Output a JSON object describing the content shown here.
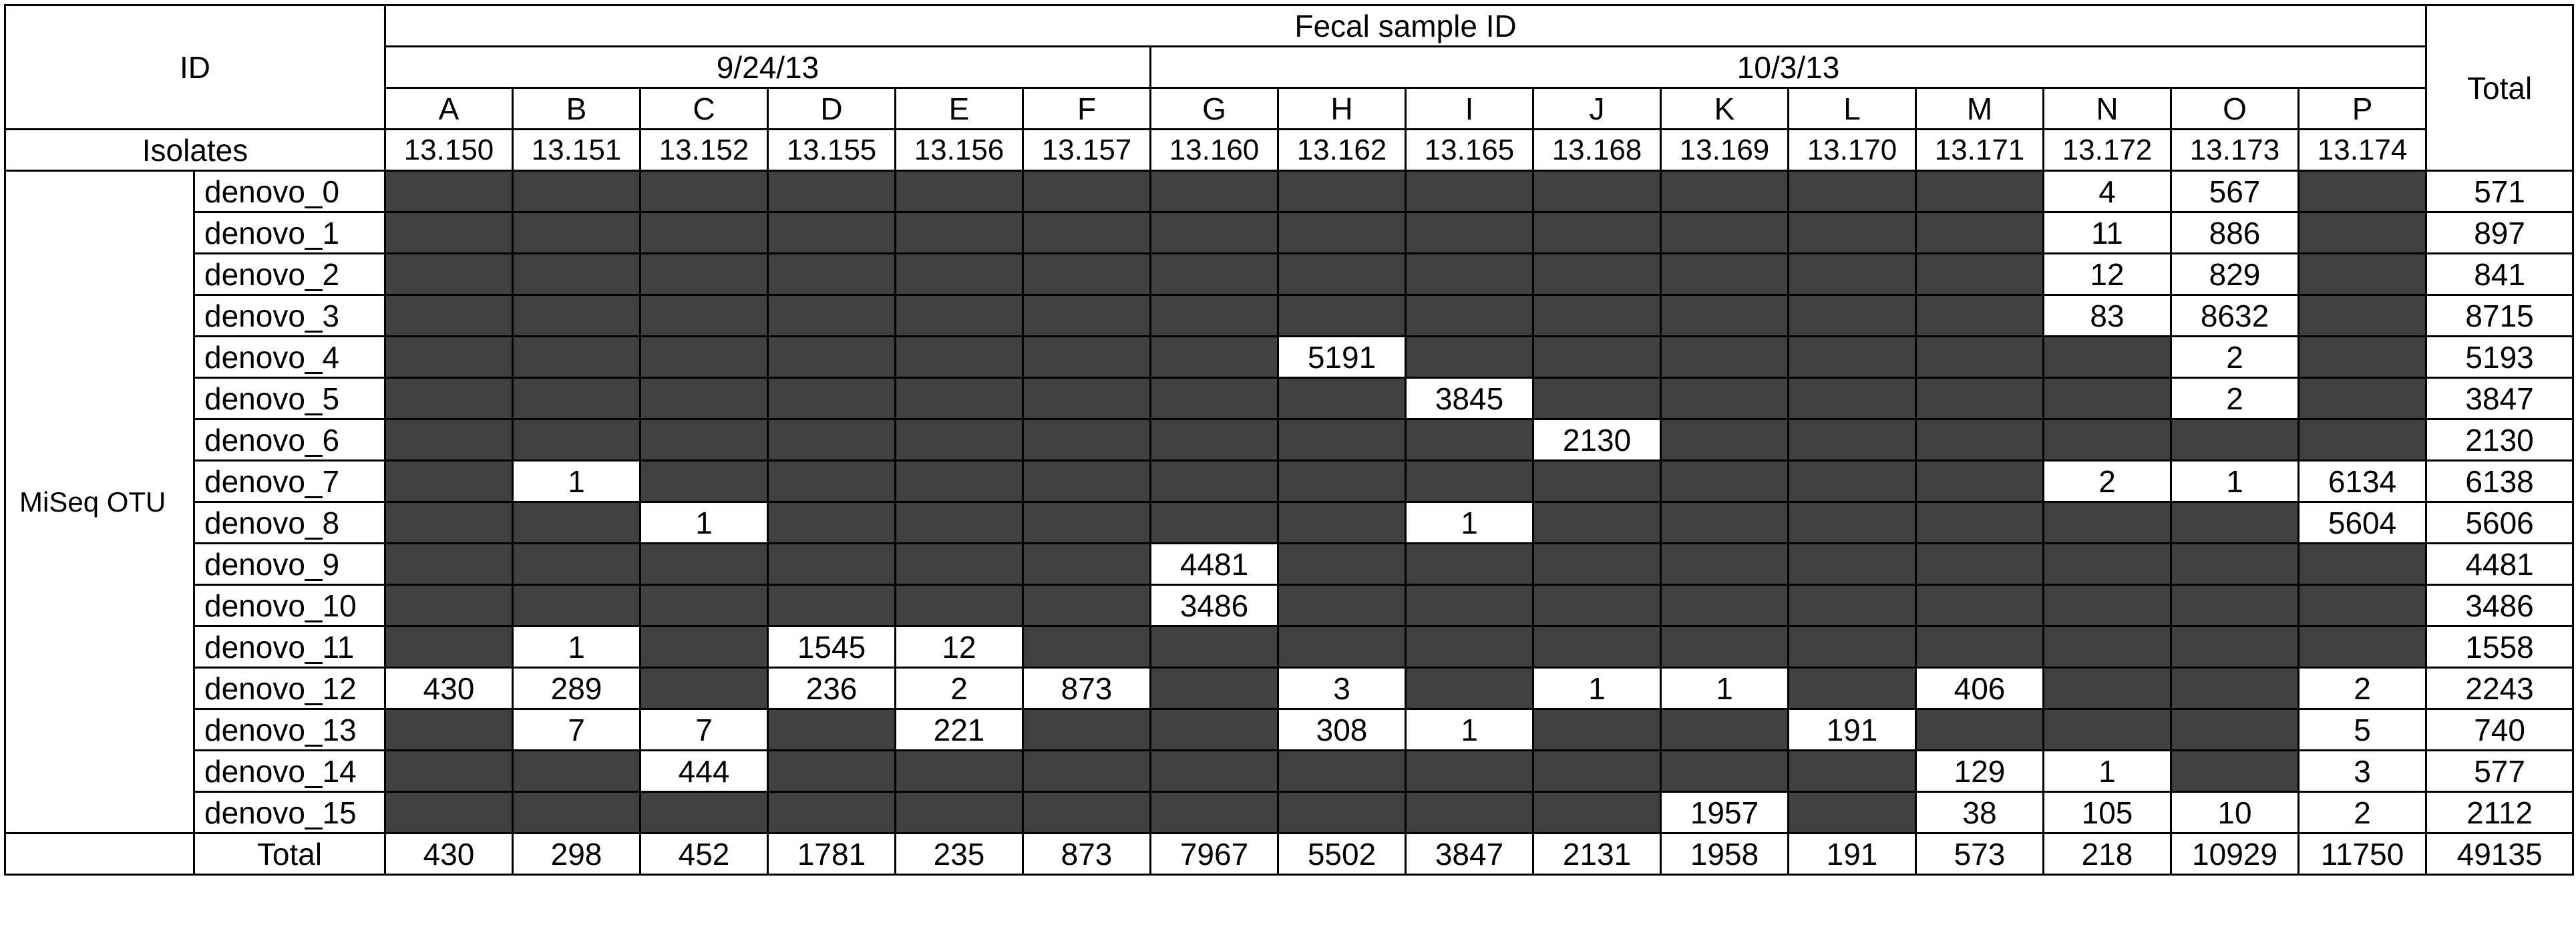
{
  "header": {
    "id_label": "ID",
    "fecal_label": "Fecal sample ID",
    "total_label": "Total",
    "dates": [
      "9/24/13",
      "10/3/13"
    ],
    "isolates_label": "Isolates",
    "miseq_label": "MiSeq OTU",
    "total_row_label": "Total"
  },
  "columns": [
    {
      "letter": "A",
      "isolate": "13.150"
    },
    {
      "letter": "B",
      "isolate": "13.151"
    },
    {
      "letter": "C",
      "isolate": "13.152"
    },
    {
      "letter": "D",
      "isolate": "13.155"
    },
    {
      "letter": "E",
      "isolate": "13.156"
    },
    {
      "letter": "F",
      "isolate": "13.157"
    },
    {
      "letter": "G",
      "isolate": "13.160"
    },
    {
      "letter": "H",
      "isolate": "13.162"
    },
    {
      "letter": "I",
      "isolate": "13.165"
    },
    {
      "letter": "J",
      "isolate": "13.168"
    },
    {
      "letter": "K",
      "isolate": "13.169"
    },
    {
      "letter": "L",
      "isolate": "13.170"
    },
    {
      "letter": "M",
      "isolate": "13.171"
    },
    {
      "letter": "N",
      "isolate": "13.172"
    },
    {
      "letter": "O",
      "isolate": "13.173"
    },
    {
      "letter": "P",
      "isolate": "13.174"
    }
  ],
  "rows": [
    {
      "label": "denovo_0",
      "cells": [
        null,
        null,
        null,
        null,
        null,
        null,
        null,
        null,
        null,
        null,
        null,
        null,
        null,
        "4",
        "567",
        null
      ],
      "total": "571"
    },
    {
      "label": "denovo_1",
      "cells": [
        null,
        null,
        null,
        null,
        null,
        null,
        null,
        null,
        null,
        null,
        null,
        null,
        null,
        "11",
        "886",
        null
      ],
      "total": "897"
    },
    {
      "label": "denovo_2",
      "cells": [
        null,
        null,
        null,
        null,
        null,
        null,
        null,
        null,
        null,
        null,
        null,
        null,
        null,
        "12",
        "829",
        null
      ],
      "total": "841"
    },
    {
      "label": "denovo_3",
      "cells": [
        null,
        null,
        null,
        null,
        null,
        null,
        null,
        null,
        null,
        null,
        null,
        null,
        null,
        "83",
        "8632",
        null
      ],
      "total": "8715"
    },
    {
      "label": "denovo_4",
      "cells": [
        null,
        null,
        null,
        null,
        null,
        null,
        null,
        "5191",
        null,
        null,
        null,
        null,
        null,
        null,
        "2",
        null
      ],
      "total": "5193"
    },
    {
      "label": "denovo_5",
      "cells": [
        null,
        null,
        null,
        null,
        null,
        null,
        null,
        null,
        "3845",
        null,
        null,
        null,
        null,
        null,
        "2",
        null
      ],
      "total": "3847"
    },
    {
      "label": "denovo_6",
      "cells": [
        null,
        null,
        null,
        null,
        null,
        null,
        null,
        null,
        null,
        "2130",
        null,
        null,
        null,
        null,
        null,
        null
      ],
      "total": "2130"
    },
    {
      "label": "denovo_7",
      "cells": [
        null,
        "1",
        null,
        null,
        null,
        null,
        null,
        null,
        null,
        null,
        null,
        null,
        null,
        "2",
        "1",
        "6134"
      ],
      "total": "6138"
    },
    {
      "label": "denovo_8",
      "cells": [
        null,
        null,
        "1",
        null,
        null,
        null,
        null,
        null,
        "1",
        null,
        null,
        null,
        null,
        null,
        null,
        "5604"
      ],
      "total": "5606"
    },
    {
      "label": "denovo_9",
      "cells": [
        null,
        null,
        null,
        null,
        null,
        null,
        "4481",
        null,
        null,
        null,
        null,
        null,
        null,
        null,
        null,
        null
      ],
      "total": "4481"
    },
    {
      "label": "denovo_10",
      "cells": [
        null,
        null,
        null,
        null,
        null,
        null,
        "3486",
        null,
        null,
        null,
        null,
        null,
        null,
        null,
        null,
        null
      ],
      "total": "3486"
    },
    {
      "label": "denovo_11",
      "cells": [
        null,
        "1",
        null,
        "1545",
        "12",
        null,
        null,
        null,
        null,
        null,
        null,
        null,
        null,
        null,
        null,
        null
      ],
      "total": "1558"
    },
    {
      "label": "denovo_12",
      "cells": [
        "430",
        "289",
        null,
        "236",
        "2",
        "873",
        null,
        "3",
        null,
        "1",
        "1",
        null,
        "406",
        null,
        null,
        "2"
      ],
      "total": "2243"
    },
    {
      "label": "denovo_13",
      "cells": [
        null,
        "7",
        "7",
        null,
        "221",
        null,
        null,
        "308",
        "1",
        null,
        null,
        "191",
        null,
        null,
        null,
        "5"
      ],
      "total": "740"
    },
    {
      "label": "denovo_14",
      "cells": [
        null,
        null,
        "444",
        null,
        null,
        null,
        null,
        null,
        null,
        null,
        null,
        null,
        "129",
        "1",
        null,
        "3"
      ],
      "total": "577"
    },
    {
      "label": "denovo_15",
      "cells": [
        null,
        null,
        null,
        null,
        null,
        null,
        null,
        null,
        null,
        null,
        "1957",
        null,
        "38",
        "105",
        "10",
        "2"
      ],
      "total": "2112"
    }
  ],
  "totals": [
    "430",
    "298",
    "452",
    "1781",
    "235",
    "873",
    "7967",
    "5502",
    "3847",
    "2131",
    "1958",
    "191",
    "573",
    "218",
    "10929",
    "11750"
  ],
  "grand_total": "49135",
  "colors": {
    "empty_cell": "#404040",
    "value_cell": "#ffffff",
    "border": "#000000"
  }
}
